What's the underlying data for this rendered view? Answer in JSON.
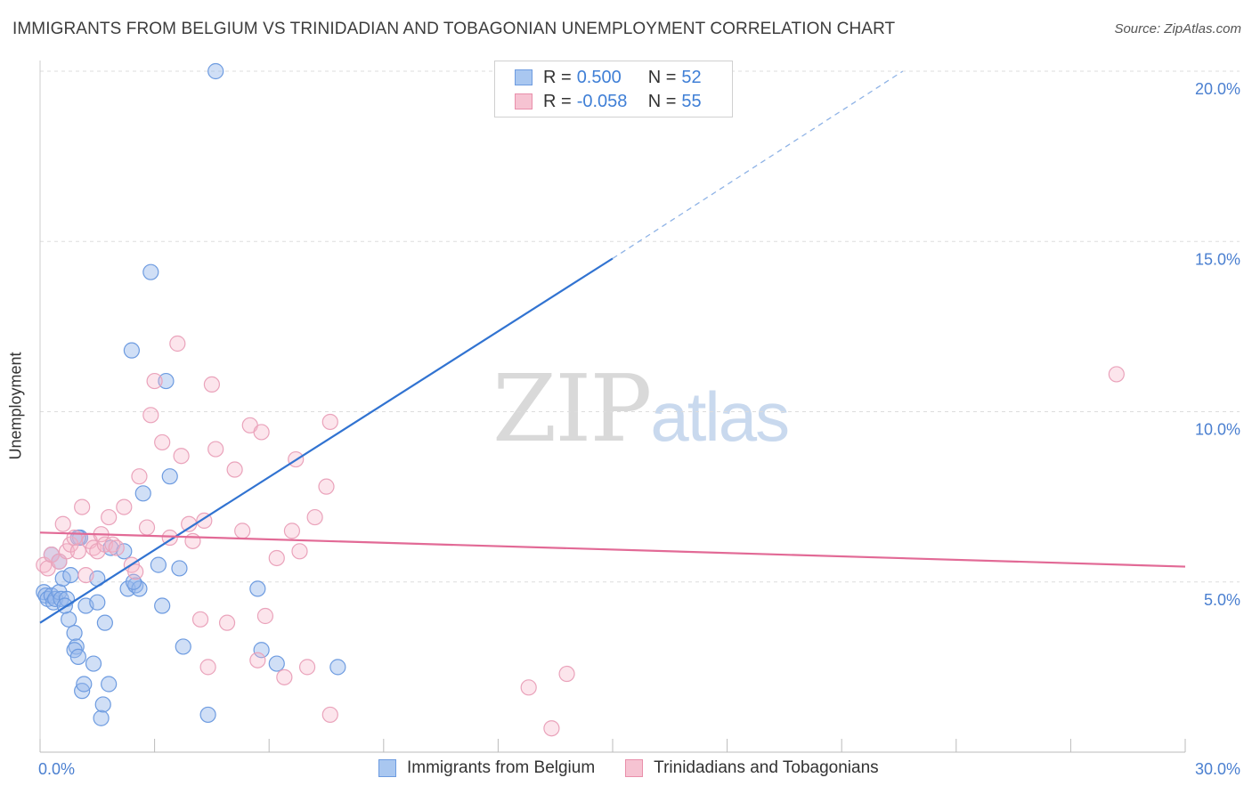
{
  "header": {
    "title": "IMMIGRANTS FROM BELGIUM VS TRINIDADIAN AND TOBAGONIAN UNEMPLOYMENT CORRELATION CHART",
    "source": "Source: ZipAtlas.com"
  },
  "watermark": {
    "zip": "ZIP",
    "atlas": "atlas"
  },
  "legend": {
    "rows": [
      {
        "r_label": "R =",
        "r_value": "0.500",
        "n_label": "N =",
        "n_value": "52",
        "color": "#a9c7f0",
        "border": "#6d9be0"
      },
      {
        "r_label": "R =",
        "r_value": "-0.058",
        "n_label": "N =",
        "n_value": "55",
        "color": "#f6c3d2",
        "border": "#e98fab"
      }
    ]
  },
  "bottom_legend": [
    {
      "label": "Immigrants from Belgium",
      "color": "#a9c7f0",
      "border": "#6d9be0"
    },
    {
      "label": "Trinidadians and Tobagonians",
      "color": "#f6c3d2",
      "border": "#e98fab"
    }
  ],
  "colors": {
    "blue": "#3173d1",
    "pink": "#e26a96",
    "blue_fill": "rgba(150,185,235,0.45)",
    "pink_fill": "rgba(245,180,200,0.35)",
    "grid": "#dddddd",
    "tick_text": "#4a7fd0"
  },
  "chart_data": {
    "type": "scatter",
    "title": "IMMIGRANTS FROM BELGIUM VS TRINIDADIAN AND TOBAGONIAN UNEMPLOYMENT CORRELATION CHART",
    "xlabel": "",
    "ylabel": "Unemployment",
    "xlim": [
      0,
      30
    ],
    "ylim": [
      0,
      20
    ],
    "x_tick_labels": [
      "0.0%",
      "30.0%"
    ],
    "y_ticks": [
      5,
      10,
      15,
      20
    ],
    "y_tick_labels": [
      "5.0%",
      "10.0%",
      "15.0%",
      "20.0%"
    ],
    "x_minor_ticks": [
      0,
      3,
      6,
      9,
      12,
      15,
      18,
      21,
      24,
      27,
      30
    ],
    "grid": true,
    "series": [
      {
        "name": "Immigrants from Belgium",
        "color": "blue",
        "points": [
          [
            0.1,
            4.7
          ],
          [
            0.15,
            4.6
          ],
          [
            0.2,
            4.5
          ],
          [
            0.3,
            4.6
          ],
          [
            0.35,
            4.4
          ],
          [
            0.4,
            4.5
          ],
          [
            0.5,
            4.7
          ],
          [
            0.55,
            4.5
          ],
          [
            0.6,
            5.1
          ],
          [
            0.5,
            5.6
          ],
          [
            0.8,
            5.2
          ],
          [
            0.7,
            4.5
          ],
          [
            0.75,
            3.9
          ],
          [
            0.65,
            4.3
          ],
          [
            0.9,
            3.5
          ],
          [
            0.95,
            3.1
          ],
          [
            0.9,
            3.0
          ],
          [
            1.0,
            2.8
          ],
          [
            1.1,
            1.8
          ],
          [
            1.15,
            2.0
          ],
          [
            1.05,
            6.3
          ],
          [
            1.2,
            4.3
          ],
          [
            1.4,
            2.6
          ],
          [
            1.5,
            5.1
          ],
          [
            1.6,
            1.0
          ],
          [
            1.65,
            1.4
          ],
          [
            1.7,
            3.8
          ],
          [
            1.8,
            2.0
          ],
          [
            1.85,
            6.0
          ],
          [
            1.5,
            4.4
          ],
          [
            2.2,
            5.9
          ],
          [
            2.3,
            4.8
          ],
          [
            2.5,
            4.9
          ],
          [
            2.6,
            4.8
          ],
          [
            2.45,
            5.0
          ],
          [
            2.7,
            7.6
          ],
          [
            2.4,
            11.8
          ],
          [
            3.2,
            4.3
          ],
          [
            3.1,
            5.5
          ],
          [
            3.3,
            10.9
          ],
          [
            3.4,
            8.1
          ],
          [
            3.65,
            5.4
          ],
          [
            3.75,
            3.1
          ],
          [
            2.9,
            14.1
          ],
          [
            4.4,
            1.1
          ],
          [
            4.6,
            20.0
          ],
          [
            5.7,
            4.8
          ],
          [
            5.8,
            3.0
          ],
          [
            6.2,
            2.6
          ],
          [
            7.8,
            2.5
          ],
          [
            0.3,
            5.8
          ],
          [
            1.0,
            6.3
          ]
        ],
        "trend": {
          "x": [
            0,
            15
          ],
          "y": [
            3.8,
            14.5
          ],
          "dashed_to": {
            "x": [
              15,
              22.6
            ],
            "y": [
              14.5,
              20.0
            ]
          }
        }
      },
      {
        "name": "Trinidadians and Tobagonians",
        "color": "pink",
        "points": [
          [
            0.1,
            5.5
          ],
          [
            0.2,
            5.4
          ],
          [
            0.3,
            5.8
          ],
          [
            0.5,
            5.6
          ],
          [
            0.6,
            6.7
          ],
          [
            0.7,
            5.9
          ],
          [
            0.8,
            6.1
          ],
          [
            0.9,
            6.3
          ],
          [
            1.0,
            5.9
          ],
          [
            1.1,
            7.2
          ],
          [
            1.2,
            5.2
          ],
          [
            1.3,
            6.2
          ],
          [
            1.4,
            6.0
          ],
          [
            1.5,
            5.9
          ],
          [
            1.6,
            6.4
          ],
          [
            1.7,
            6.1
          ],
          [
            1.8,
            6.9
          ],
          [
            1.9,
            6.1
          ],
          [
            2.0,
            6.0
          ],
          [
            2.2,
            7.2
          ],
          [
            2.4,
            5.5
          ],
          [
            2.5,
            5.3
          ],
          [
            2.6,
            8.1
          ],
          [
            2.8,
            6.6
          ],
          [
            2.9,
            9.9
          ],
          [
            3.0,
            10.9
          ],
          [
            3.2,
            9.1
          ],
          [
            3.4,
            6.3
          ],
          [
            3.6,
            12.0
          ],
          [
            3.7,
            8.7
          ],
          [
            3.9,
            6.7
          ],
          [
            4.0,
            6.2
          ],
          [
            4.2,
            3.9
          ],
          [
            4.3,
            6.8
          ],
          [
            4.4,
            2.5
          ],
          [
            4.5,
            10.8
          ],
          [
            4.6,
            8.9
          ],
          [
            4.9,
            3.8
          ],
          [
            5.1,
            8.3
          ],
          [
            5.3,
            6.5
          ],
          [
            5.5,
            9.6
          ],
          [
            5.7,
            2.7
          ],
          [
            5.8,
            9.4
          ],
          [
            5.9,
            4.0
          ],
          [
            6.2,
            5.7
          ],
          [
            6.4,
            2.2
          ],
          [
            6.6,
            6.5
          ],
          [
            6.7,
            8.6
          ],
          [
            6.8,
            5.9
          ],
          [
            7.0,
            2.5
          ],
          [
            7.2,
            6.9
          ],
          [
            7.5,
            7.8
          ],
          [
            7.6,
            9.7
          ],
          [
            7.6,
            1.1
          ],
          [
            28.2,
            11.1
          ]
        ],
        "extra_points": [
          [
            12.8,
            1.9
          ],
          [
            13.4,
            0.7
          ],
          [
            13.8,
            2.3
          ]
        ],
        "trend": {
          "x": [
            0,
            30
          ],
          "y": [
            6.45,
            5.45
          ]
        }
      }
    ]
  }
}
